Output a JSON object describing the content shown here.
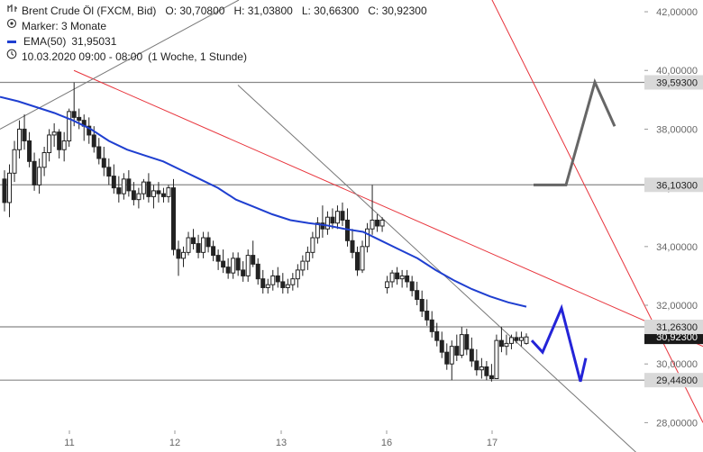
{
  "legend": {
    "title": "Brent Crude Öl (FXCM, Bid)",
    "open": "O: 30,70800",
    "high": "H: 31,03800",
    "low": "L: 30,66300",
    "close": "C: 30,92300",
    "marker": "Marker: 3 Monate",
    "ema_label": "EMA(50)",
    "ema_value": "31,95031",
    "period": "10.03.2020 09:00 - 08:00",
    "interval": "(1 Woche, 1 Stunde)"
  },
  "colors": {
    "candle": "#222222",
    "ema": "#1f3fd0",
    "channel_red": "#e8333b",
    "channel_gray": "#777777",
    "level_line": "#888888",
    "projection_gray": "#666666",
    "projection_blue": "#2424d8",
    "label_bg": "#d9d9d9",
    "current_bg": "#1a1a1a"
  },
  "chart_data": {
    "type": "candlestick",
    "title": "Brent Crude Öl (FXCM, Bid)",
    "ylim": [
      27.0,
      42.4
    ],
    "y_ticks": [
      "28,00000",
      "30,00000",
      "32,00000",
      "34,00000",
      "36,00000",
      "38,00000",
      "40,00000",
      "42,00000"
    ],
    "x_ticks": [
      "11",
      "12",
      "13",
      "16",
      "17"
    ],
    "grid": false,
    "levels": [
      {
        "value": 39.593,
        "label": "39,59300"
      },
      {
        "value": 36.103,
        "label": "36,10300"
      },
      {
        "value": 31.263,
        "label": "31,26300"
      },
      {
        "value": 29.448,
        "label": "29,44800"
      }
    ],
    "current": {
      "value": 30.923,
      "label": "30,92300"
    },
    "candles": [
      [
        36.3,
        36.6,
        35.2,
        35.5
      ],
      [
        35.5,
        36.8,
        35.0,
        36.5
      ],
      [
        36.5,
        37.6,
        36.2,
        37.3
      ],
      [
        37.3,
        38.3,
        37.0,
        38.0
      ],
      [
        38.0,
        38.5,
        37.3,
        37.6
      ],
      [
        37.6,
        37.9,
        36.7,
        36.9
      ],
      [
        36.9,
        37.2,
        35.9,
        36.1
      ],
      [
        36.1,
        37.0,
        35.8,
        36.7
      ],
      [
        36.7,
        37.4,
        36.4,
        37.2
      ],
      [
        37.2,
        38.0,
        36.9,
        37.8
      ],
      [
        37.8,
        38.2,
        37.4,
        37.9
      ],
      [
        37.9,
        38.0,
        37.0,
        37.3
      ],
      [
        37.3,
        37.9,
        36.9,
        37.6
      ],
      [
        37.6,
        38.7,
        37.4,
        38.6
      ],
      [
        38.6,
        39.59,
        38.1,
        38.4
      ],
      [
        38.4,
        38.7,
        38.0,
        38.3
      ],
      [
        38.3,
        38.5,
        37.6,
        38.1
      ],
      [
        38.1,
        38.4,
        37.5,
        37.8
      ],
      [
        37.8,
        38.1,
        37.2,
        37.4
      ],
      [
        37.4,
        37.7,
        36.8,
        37.0
      ],
      [
        37.0,
        37.4,
        36.4,
        36.7
      ],
      [
        36.7,
        37.0,
        36.1,
        36.4
      ],
      [
        36.4,
        36.8,
        35.8,
        36.0
      ],
      [
        36.0,
        36.4,
        35.5,
        35.8
      ],
      [
        35.8,
        36.5,
        35.6,
        36.3
      ],
      [
        36.3,
        36.6,
        35.7,
        35.9
      ],
      [
        35.9,
        36.2,
        35.4,
        35.6
      ],
      [
        35.6,
        36.0,
        35.3,
        35.8
      ],
      [
        35.8,
        36.3,
        35.6,
        36.2
      ],
      [
        36.2,
        36.5,
        35.5,
        35.7
      ],
      [
        35.7,
        36.1,
        35.3,
        35.9
      ],
      [
        35.9,
        36.2,
        35.5,
        35.8
      ],
      [
        35.8,
        36.0,
        35.5,
        35.7
      ],
      [
        35.7,
        36.1,
        35.5,
        36.0
      ],
      [
        36.0,
        36.3,
        33.7,
        33.9
      ],
      [
        33.9,
        34.2,
        33.0,
        33.6
      ],
      [
        33.6,
        34.0,
        33.3,
        33.8
      ],
      [
        33.8,
        34.5,
        33.7,
        34.3
      ],
      [
        34.3,
        34.6,
        33.9,
        34.1
      ],
      [
        34.1,
        34.4,
        33.6,
        33.8
      ],
      [
        33.8,
        34.5,
        33.6,
        34.3
      ],
      [
        34.3,
        34.5,
        33.8,
        34.0
      ],
      [
        34.0,
        34.2,
        33.5,
        33.7
      ],
      [
        33.7,
        33.9,
        33.2,
        33.5
      ],
      [
        33.5,
        33.9,
        33.1,
        33.3
      ],
      [
        33.3,
        33.6,
        32.9,
        33.1
      ],
      [
        33.1,
        33.8,
        32.9,
        33.6
      ],
      [
        33.6,
        33.8,
        33.0,
        33.2
      ],
      [
        33.2,
        33.5,
        32.8,
        33.0
      ],
      [
        33.0,
        33.9,
        32.8,
        33.7
      ],
      [
        33.7,
        34.2,
        33.3,
        33.4
      ],
      [
        33.4,
        33.6,
        32.7,
        32.9
      ],
      [
        32.9,
        33.2,
        32.4,
        32.6
      ],
      [
        32.6,
        32.9,
        32.4,
        32.7
      ],
      [
        32.7,
        33.2,
        32.5,
        33.0
      ],
      [
        33.0,
        33.3,
        32.6,
        32.8
      ],
      [
        32.8,
        33.1,
        32.4,
        32.6
      ],
      [
        32.6,
        32.9,
        32.4,
        32.7
      ],
      [
        32.7,
        33.1,
        32.5,
        32.9
      ],
      [
        32.9,
        33.4,
        32.6,
        33.2
      ],
      [
        33.2,
        33.7,
        33.0,
        33.5
      ],
      [
        33.5,
        34.0,
        33.2,
        33.8
      ],
      [
        33.8,
        34.5,
        33.6,
        34.3
      ],
      [
        34.3,
        35.0,
        34.1,
        34.8
      ],
      [
        34.8,
        35.4,
        34.3,
        34.6
      ],
      [
        34.6,
        35.2,
        34.4,
        35.0
      ],
      [
        35.0,
        35.3,
        34.6,
        34.8
      ],
      [
        34.8,
        35.4,
        34.6,
        35.2
      ],
      [
        35.2,
        35.5,
        34.7,
        34.9
      ],
      [
        34.9,
        35.3,
        34.0,
        34.2
      ],
      [
        34.2,
        34.6,
        33.6,
        33.8
      ],
      [
        33.8,
        34.0,
        33.0,
        33.2
      ],
      [
        33.2,
        34.2,
        33.1,
        34.0
      ],
      [
        34.0,
        34.8,
        33.8,
        34.6
      ],
      [
        34.6,
        36.1,
        34.4,
        34.9
      ],
      [
        34.9,
        35.1,
        34.5,
        34.7
      ],
      [
        34.7,
        35.0,
        34.5,
        34.9
      ],
      [
        32.6,
        33.0,
        32.4,
        32.8
      ],
      [
        32.8,
        33.2,
        32.6,
        33.1
      ],
      [
        33.1,
        33.3,
        32.7,
        32.9
      ],
      [
        32.9,
        33.2,
        32.6,
        33.0
      ],
      [
        33.0,
        33.2,
        32.6,
        32.8
      ],
      [
        32.8,
        33.0,
        32.3,
        32.5
      ],
      [
        32.5,
        32.8,
        32.0,
        32.2
      ],
      [
        32.2,
        32.5,
        31.6,
        31.8
      ],
      [
        31.8,
        32.2,
        31.3,
        31.5
      ],
      [
        31.5,
        31.8,
        30.9,
        31.1
      ],
      [
        31.1,
        31.4,
        30.6,
        30.8
      ],
      [
        30.8,
        31.1,
        30.2,
        30.4
      ],
      [
        30.4,
        30.7,
        29.8,
        30.0
      ],
      [
        30.0,
        30.8,
        29.45,
        30.6
      ],
      [
        30.6,
        31.0,
        30.1,
        30.3
      ],
      [
        30.3,
        31.26,
        30.2,
        31.0
      ],
      [
        31.0,
        31.2,
        30.3,
        30.5
      ],
      [
        30.5,
        30.9,
        29.9,
        30.1
      ],
      [
        30.1,
        30.5,
        29.6,
        29.8
      ],
      [
        29.8,
        30.2,
        29.5,
        29.9
      ],
      [
        29.9,
        30.1,
        29.45,
        29.6
      ],
      [
        29.6,
        30.0,
        29.4,
        29.5
      ],
      [
        29.5,
        31.0,
        29.5,
        30.8
      ],
      [
        30.8,
        31.26,
        30.4,
        30.6
      ],
      [
        30.6,
        31.0,
        30.3,
        30.7
      ],
      [
        30.7,
        31.0,
        30.5,
        30.9
      ],
      [
        30.9,
        31.1,
        30.7,
        30.8
      ],
      [
        30.8,
        31.1,
        30.6,
        30.9
      ],
      [
        30.7,
        31.04,
        30.66,
        30.92
      ]
    ],
    "ema50": [
      39.1,
      38.95,
      38.75,
      38.55,
      38.3,
      38.0,
      37.6,
      37.3,
      37.1,
      36.9,
      36.6,
      36.3,
      36.0,
      35.6,
      35.35,
      35.1,
      34.9,
      34.8,
      34.72,
      34.6,
      34.5,
      34.2,
      33.9,
      33.6,
      33.2,
      32.85,
      32.55,
      32.3,
      32.1,
      31.95
    ],
    "channels": [
      {
        "name": "red-upper-line",
        "points": [
          [
            37.0,
            44.0
          ],
          [
            44.5,
            28.0
          ]
        ]
      },
      {
        "name": "red-lower-line",
        "points": [
          [
            38.8,
            40.0
          ],
          [
            45.4,
            30.6
          ]
        ]
      },
      {
        "name": "gray-trend-line",
        "points": [
          [
            40.5,
            39.5
          ],
          [
            29.0,
            26.3
          ]
        ]
      },
      {
        "name": "gray-uptrend-line",
        "points": [
          [
            40.0,
            38.0
          ],
          [
            40.5,
            42.4
          ]
        ]
      }
    ],
    "projection_gray": [
      36.1,
      36.1,
      39.6,
      38.1
    ],
    "projection_blue": [
      30.8,
      30.4,
      31.9,
      29.4,
      30.2
    ]
  }
}
